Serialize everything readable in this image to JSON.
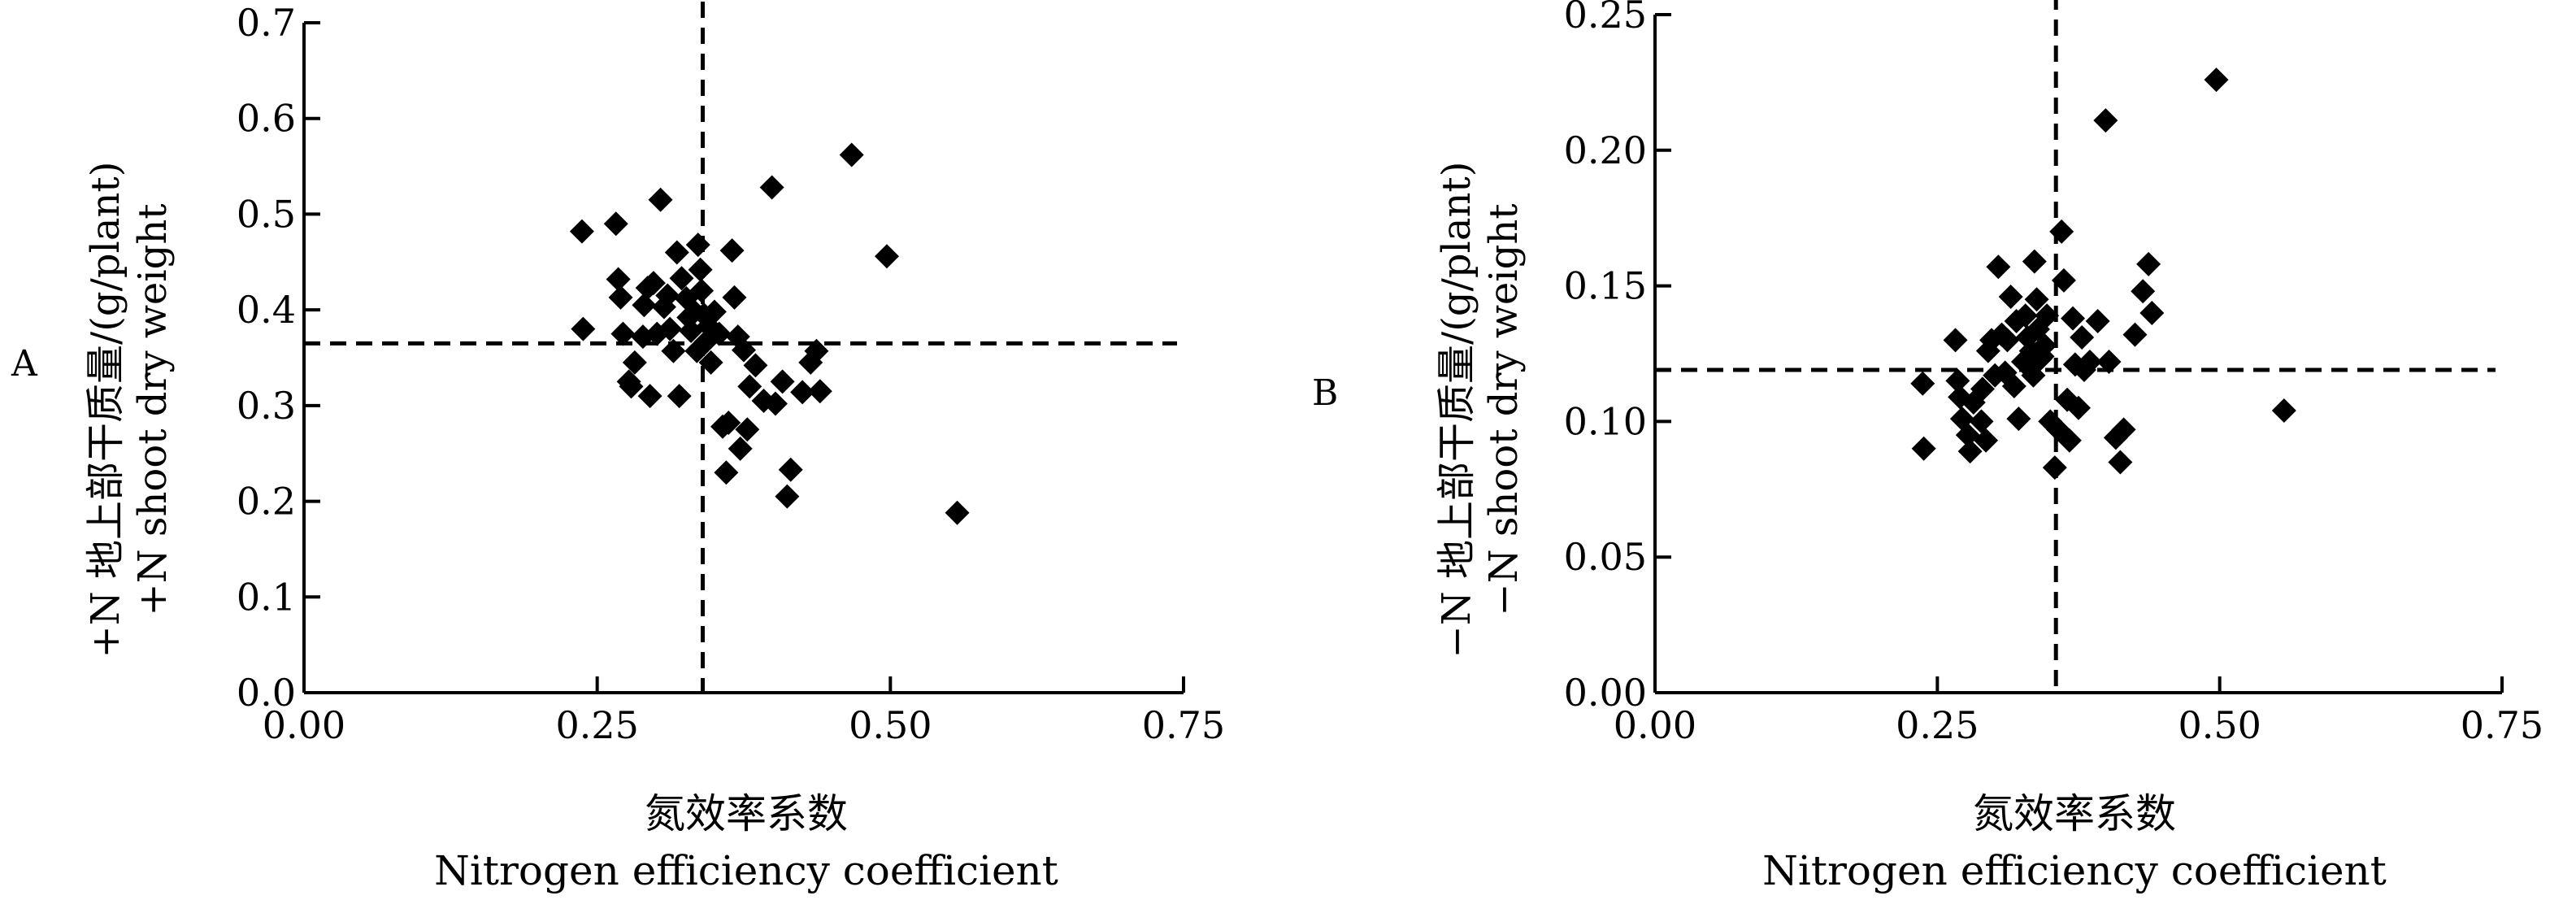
{
  "chart_data": [
    {
      "type": "scatter",
      "panel_label": "A",
      "xlabel_cn": "氮效率系数",
      "xlabel_en": "Nitrogen efficiency coefficient",
      "ylabel_cn": "+N 地上部干质量/(g/plant)",
      "ylabel_en": "+N shoot dry weight",
      "xlim": [
        0,
        0.75
      ],
      "ylim": [
        0,
        0.7
      ],
      "x_ticks": [
        0,
        0.25,
        0.5,
        0.75
      ],
      "x_tick_labels": [
        "0.00",
        "0.25",
        "0.50",
        "0.75"
      ],
      "y_ticks": [
        0,
        0.1,
        0.2,
        0.3,
        0.4,
        0.5,
        0.6,
        0.7
      ],
      "y_tick_labels": [
        "0.0",
        "0.1",
        "0.2",
        "0.3",
        "0.4",
        "0.5",
        "0.6",
        "0.7"
      ],
      "vline_x": 0.34,
      "hline_y": 0.365,
      "grid": false,
      "points": [
        [
          0.237,
          0.482
        ],
        [
          0.238,
          0.38
        ],
        [
          0.266,
          0.49
        ],
        [
          0.268,
          0.432
        ],
        [
          0.27,
          0.413
        ],
        [
          0.272,
          0.375
        ],
        [
          0.277,
          0.325
        ],
        [
          0.279,
          0.32
        ],
        [
          0.282,
          0.345
        ],
        [
          0.289,
          0.372
        ],
        [
          0.29,
          0.405
        ],
        [
          0.293,
          0.423
        ],
        [
          0.295,
          0.31
        ],
        [
          0.298,
          0.428
        ],
        [
          0.301,
          0.375
        ],
        [
          0.304,
          0.515
        ],
        [
          0.307,
          0.403
        ],
        [
          0.31,
          0.415
        ],
        [
          0.312,
          0.38
        ],
        [
          0.315,
          0.357
        ],
        [
          0.318,
          0.46
        ],
        [
          0.32,
          0.31
        ],
        [
          0.322,
          0.433
        ],
        [
          0.326,
          0.412
        ],
        [
          0.328,
          0.392
        ],
        [
          0.33,
          0.378
        ],
        [
          0.333,
          0.398
        ],
        [
          0.335,
          0.357
        ],
        [
          0.336,
          0.468
        ],
        [
          0.338,
          0.442
        ],
        [
          0.339,
          0.42
        ],
        [
          0.341,
          0.395
        ],
        [
          0.343,
          0.367
        ],
        [
          0.345,
          0.383
        ],
        [
          0.347,
          0.345
        ],
        [
          0.35,
          0.398
        ],
        [
          0.354,
          0.375
        ],
        [
          0.357,
          0.278
        ],
        [
          0.36,
          0.23
        ],
        [
          0.362,
          0.282
        ],
        [
          0.365,
          0.462
        ],
        [
          0.367,
          0.413
        ],
        [
          0.37,
          0.372
        ],
        [
          0.372,
          0.255
        ],
        [
          0.375,
          0.358
        ],
        [
          0.378,
          0.275
        ],
        [
          0.38,
          0.32
        ],
        [
          0.385,
          0.342
        ],
        [
          0.392,
          0.305
        ],
        [
          0.399,
          0.528
        ],
        [
          0.402,
          0.302
        ],
        [
          0.408,
          0.325
        ],
        [
          0.412,
          0.205
        ],
        [
          0.415,
          0.233
        ],
        [
          0.425,
          0.314
        ],
        [
          0.432,
          0.345
        ],
        [
          0.437,
          0.357
        ],
        [
          0.44,
          0.315
        ],
        [
          0.467,
          0.562
        ],
        [
          0.497,
          0.456
        ],
        [
          0.557,
          0.188
        ]
      ]
    },
    {
      "type": "scatter",
      "panel_label": "B",
      "xlabel_cn": "氮效率系数",
      "xlabel_en": "Nitrogen efficiency coefficient",
      "ylabel_cn": "−N 地上部干质量/(g/plant)",
      "ylabel_en": "−N shoot dry weight",
      "xlim": [
        0,
        0.75
      ],
      "ylim": [
        0,
        0.25
      ],
      "x_ticks": [
        0,
        0.25,
        0.5,
        0.75
      ],
      "x_tick_labels": [
        "0.00",
        "0.25",
        "0.50",
        "0.75"
      ],
      "y_ticks": [
        0,
        0.05,
        0.1,
        0.15,
        0.2,
        0.25
      ],
      "y_tick_labels": [
        "0.00",
        "0.05",
        "0.10",
        "0.15",
        "0.20",
        "0.25"
      ],
      "vline_x": 0.355,
      "hline_y": 0.119,
      "grid": false,
      "points": [
        [
          0.237,
          0.114
        ],
        [
          0.238,
          0.09
        ],
        [
          0.266,
          0.13
        ],
        [
          0.268,
          0.115
        ],
        [
          0.27,
          0.109
        ],
        [
          0.272,
          0.101
        ],
        [
          0.277,
          0.095
        ],
        [
          0.279,
          0.089
        ],
        [
          0.282,
          0.107
        ],
        [
          0.289,
          0.1
        ],
        [
          0.29,
          0.112
        ],
        [
          0.293,
          0.093
        ],
        [
          0.295,
          0.126
        ],
        [
          0.298,
          0.13
        ],
        [
          0.301,
          0.117
        ],
        [
          0.304,
          0.157
        ],
        [
          0.307,
          0.132
        ],
        [
          0.31,
          0.118
        ],
        [
          0.312,
          0.13
        ],
        [
          0.315,
          0.146
        ],
        [
          0.318,
          0.113
        ],
        [
          0.32,
          0.137
        ],
        [
          0.322,
          0.101
        ],
        [
          0.326,
          0.122
        ],
        [
          0.328,
          0.139
        ],
        [
          0.33,
          0.131
        ],
        [
          0.333,
          0.126
        ],
        [
          0.335,
          0.117
        ],
        [
          0.336,
          0.159
        ],
        [
          0.338,
          0.145
        ],
        [
          0.339,
          0.134
        ],
        [
          0.341,
          0.123
        ],
        [
          0.343,
          0.124
        ],
        [
          0.345,
          0.128
        ],
        [
          0.347,
          0.139
        ],
        [
          0.35,
          0.1
        ],
        [
          0.354,
          0.083
        ],
        [
          0.357,
          0.097
        ],
        [
          0.36,
          0.17
        ],
        [
          0.362,
          0.152
        ],
        [
          0.365,
          0.108
        ],
        [
          0.367,
          0.093
        ],
        [
          0.37,
          0.138
        ],
        [
          0.372,
          0.121
        ],
        [
          0.375,
          0.105
        ],
        [
          0.378,
          0.131
        ],
        [
          0.38,
          0.119
        ],
        [
          0.385,
          0.122
        ],
        [
          0.392,
          0.137
        ],
        [
          0.399,
          0.211
        ],
        [
          0.402,
          0.122
        ],
        [
          0.408,
          0.094
        ],
        [
          0.412,
          0.085
        ],
        [
          0.415,
          0.097
        ],
        [
          0.425,
          0.132
        ],
        [
          0.432,
          0.148
        ],
        [
          0.437,
          0.158
        ],
        [
          0.44,
          0.14
        ],
        [
          0.497,
          0.226
        ],
        [
          0.557,
          0.104
        ]
      ]
    }
  ]
}
